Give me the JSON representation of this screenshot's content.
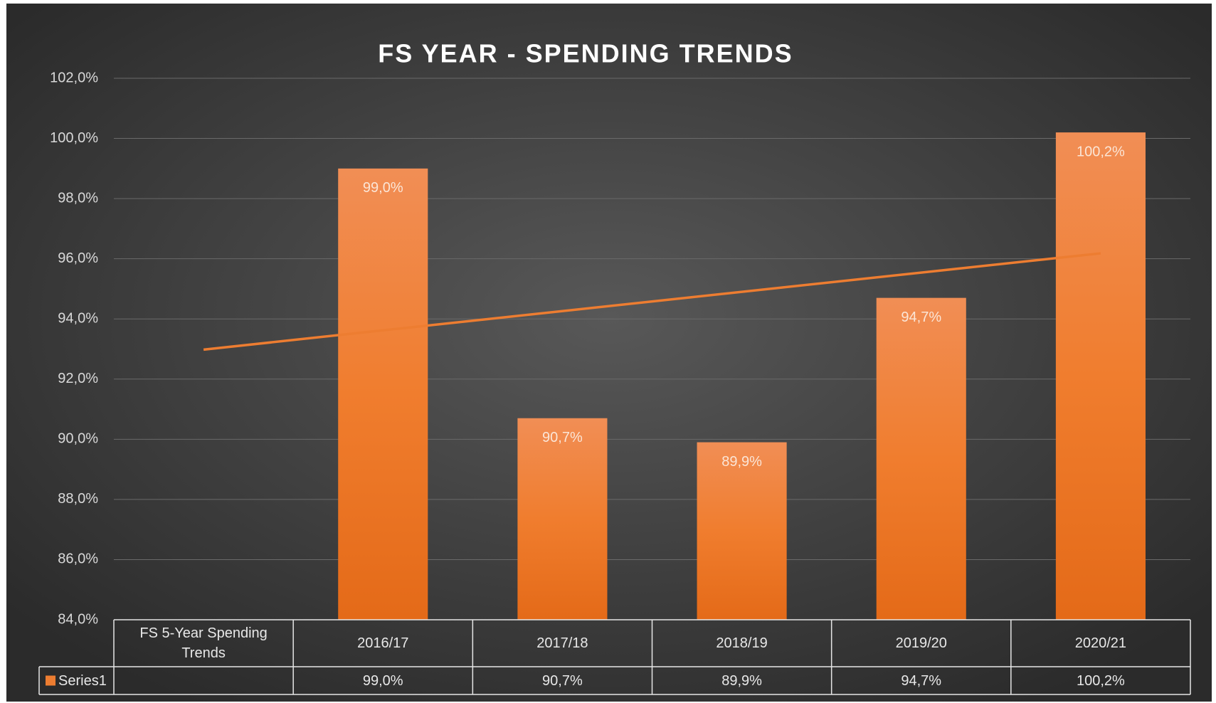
{
  "chart_data": {
    "type": "bar",
    "title": "FS YEAR - SPENDING TRENDS",
    "categories": [
      "FS 5-Year Spending Trends",
      "2016/17",
      "2017/18",
      "2018/19",
      "2019/20",
      "2020/21"
    ],
    "series": [
      {
        "name": "Series1",
        "color": "#ed7d31",
        "values": [
          null,
          99.0,
          90.7,
          89.9,
          94.7,
          100.2
        ],
        "value_labels": [
          null,
          "99,0%",
          "90,7%",
          "89,9%",
          "94,7%",
          "100,2%"
        ]
      }
    ],
    "trendline": "linear",
    "ylim": [
      84,
      102
    ],
    "yticks": [
      {
        "value": 84,
        "label": "84,0%"
      },
      {
        "value": 86,
        "label": "86,0%"
      },
      {
        "value": 88,
        "label": "88,0%"
      },
      {
        "value": 90,
        "label": "90,0%"
      },
      {
        "value": 92,
        "label": "92,0%"
      },
      {
        "value": 94,
        "label": "94,0%"
      },
      {
        "value": 96,
        "label": "96,0%"
      },
      {
        "value": 98,
        "label": "98,0%"
      },
      {
        "value": 100,
        "label": "100,0%"
      },
      {
        "value": 102,
        "label": "102,0%"
      }
    ],
    "grid": true,
    "data_table": true
  }
}
